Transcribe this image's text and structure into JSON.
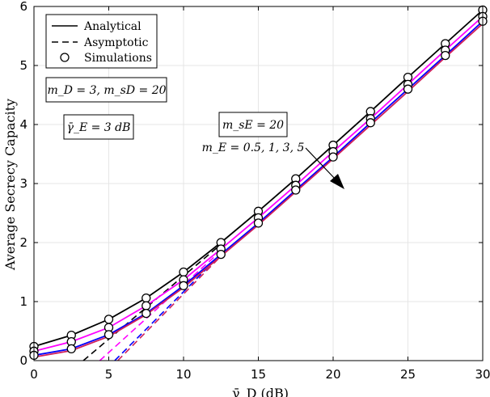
{
  "chart_data": {
    "type": "line",
    "xlabel": "γ̄_D (dB)",
    "ylabel": "Average Secrecy Capacity",
    "xlim": [
      0,
      30
    ],
    "ylim": [
      0,
      6
    ],
    "xticks": [
      "0",
      "5",
      "10",
      "15",
      "20",
      "25",
      "30"
    ],
    "yticks": [
      "0",
      "1",
      "2",
      "3",
      "4",
      "5",
      "6"
    ],
    "grid": true,
    "legend": {
      "position": "top-left",
      "entries": [
        "Analytical",
        "Asymptotic",
        "Simulations"
      ]
    },
    "annotations": [
      {
        "id": "params",
        "text": "m_D = 3, m_sD = 20"
      },
      {
        "id": "gammaE",
        "text": "γ̄_E = 3 dB"
      },
      {
        "id": "msE",
        "text": "m_sE = 20"
      },
      {
        "id": "mE",
        "text": "m_E = 0.5, 1, 3, 5"
      }
    ],
    "x": [
      0,
      2.5,
      5,
      7.5,
      10,
      12.5,
      15,
      17.5,
      20,
      22.5,
      25,
      27.5,
      30
    ],
    "series": [
      {
        "name": "m_E = 0.5",
        "color": "#000000",
        "values": [
          0.24,
          0.43,
          0.7,
          1.06,
          1.5,
          2.0,
          2.53,
          3.08,
          3.65,
          4.22,
          4.8,
          5.37,
          5.94
        ],
        "asymptote": [
          [
            3.3,
            0.0
          ],
          [
            12.5,
            1.97
          ]
        ]
      },
      {
        "name": "m_E = 1",
        "color": "#ff00ff",
        "values": [
          0.16,
          0.32,
          0.56,
          0.93,
          1.37,
          1.89,
          2.42,
          2.97,
          3.54,
          4.1,
          4.68,
          5.26,
          5.83
        ],
        "asymptote": [
          [
            4.4,
            0.0
          ],
          [
            12.5,
            1.86
          ]
        ]
      },
      {
        "name": "m_E = 3",
        "color": "#0000ff",
        "values": [
          0.09,
          0.2,
          0.44,
          0.8,
          1.27,
          1.8,
          2.33,
          2.89,
          3.45,
          4.03,
          4.6,
          5.17,
          5.75
        ],
        "asymptote": [
          [
            5.4,
            0.0
          ],
          [
            12.5,
            1.8
          ]
        ]
      },
      {
        "name": "m_E = 5",
        "color": "#d0205a",
        "values": [
          0.06,
          0.17,
          0.41,
          0.78,
          1.24,
          1.77,
          2.3,
          2.86,
          3.42,
          3.99,
          4.56,
          5.14,
          5.71
        ],
        "asymptote": [
          [
            5.6,
            0.0
          ],
          [
            12.5,
            1.77
          ]
        ]
      }
    ]
  }
}
